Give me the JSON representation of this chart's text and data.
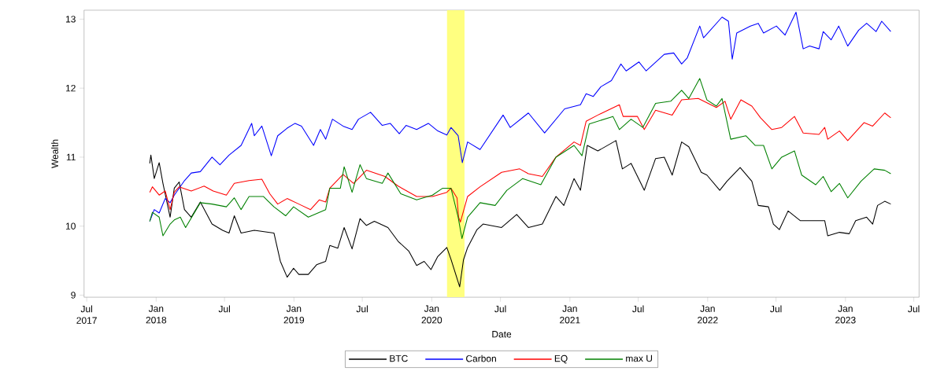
{
  "chart_data": {
    "type": "line",
    "xlabel": "Date",
    "ylabel": "Wealth",
    "xlim": [
      "2017-06-24",
      "2023-07-15"
    ],
    "ylim": [
      8.97,
      13.13
    ],
    "xticks": [
      {
        "value": "2017-07-01",
        "label": "Jul 2017"
      },
      {
        "value": "2018-01-01",
        "label": "Jan 2018"
      },
      {
        "value": "2018-07-01",
        "label": "Jul"
      },
      {
        "value": "2019-01-01",
        "label": "Jan 2019"
      },
      {
        "value": "2019-07-01",
        "label": "Jul"
      },
      {
        "value": "2020-01-01",
        "label": "Jan 2020"
      },
      {
        "value": "2020-07-01",
        "label": "Jul"
      },
      {
        "value": "2021-01-01",
        "label": "Jan 2021"
      },
      {
        "value": "2021-07-01",
        "label": "Jul"
      },
      {
        "value": "2022-01-01",
        "label": "Jan 2022"
      },
      {
        "value": "2022-07-01",
        "label": "Jul"
      },
      {
        "value": "2023-01-01",
        "label": "Jan 2023"
      },
      {
        "value": "2023-07-01",
        "label": "Jul"
      }
    ],
    "yticks": [
      9,
      10,
      11,
      12,
      13
    ],
    "grid": false,
    "legend": "bottom",
    "marker": "none",
    "line_style": "solid",
    "bands": [
      {
        "axis": "x",
        "from": "2020-02-10",
        "to": "2020-03-28",
        "color": "#ffff80"
      }
    ],
    "series": [
      {
        "name": "BTC",
        "color": "#000000",
        "x": [
          "2017-12-15",
          "2017-12-18",
          "2017-12-27",
          "2018-01-09",
          "2018-01-19",
          "2018-02-07",
          "2018-02-18",
          "2018-03-03",
          "2018-03-17",
          "2018-04-04",
          "2018-04-28",
          "2018-05-29",
          "2018-06-26",
          "2018-07-13",
          "2018-07-27",
          "2018-08-14",
          "2018-09-18",
          "2018-11-09",
          "2018-11-26",
          "2018-12-14",
          "2018-12-31",
          "2019-01-14",
          "2019-02-08",
          "2019-03-02",
          "2019-03-26",
          "2019-04-06",
          "2019-04-27",
          "2019-05-14",
          "2019-06-04",
          "2019-06-25",
          "2019-07-12",
          "2019-08-02",
          "2019-09-07",
          "2019-10-04",
          "2019-11-01",
          "2019-11-22",
          "2019-12-12",
          "2019-12-30",
          "2020-01-17",
          "2020-02-10",
          "2020-02-21",
          "2020-03-15",
          "2020-03-25",
          "2020-04-05",
          "2020-04-30",
          "2020-05-16",
          "2020-07-04",
          "2020-08-13",
          "2020-09-13",
          "2020-10-20",
          "2020-11-25",
          "2020-12-16",
          "2021-01-12",
          "2021-01-29",
          "2021-02-16",
          "2021-03-16",
          "2021-05-03",
          "2021-05-20",
          "2021-06-12",
          "2021-07-17",
          "2021-08-16",
          "2021-09-08",
          "2021-09-29",
          "2021-10-24",
          "2021-11-12",
          "2021-12-15",
          "2021-12-30",
          "2022-02-02",
          "2022-02-21",
          "2022-03-28",
          "2022-04-28",
          "2022-05-15",
          "2022-06-11",
          "2022-06-24",
          "2022-07-10",
          "2022-08-02",
          "2022-09-03",
          "2022-10-04",
          "2022-11-07",
          "2022-11-15",
          "2022-12-16",
          "2023-01-11",
          "2023-01-28",
          "2023-02-26",
          "2023-03-14",
          "2023-03-27",
          "2023-04-15",
          "2023-05-01"
        ],
        "values": [
          10.91,
          11.03,
          10.69,
          10.92,
          10.62,
          10.13,
          10.55,
          10.64,
          10.24,
          10.13,
          10.35,
          10.03,
          9.94,
          9.9,
          10.15,
          9.9,
          9.94,
          9.9,
          9.49,
          9.26,
          9.39,
          9.3,
          9.3,
          9.44,
          9.49,
          9.72,
          9.68,
          9.98,
          9.67,
          10.11,
          10.01,
          10.07,
          9.98,
          9.78,
          9.64,
          9.43,
          9.49,
          9.37,
          9.56,
          9.69,
          9.52,
          9.12,
          9.51,
          9.69,
          9.95,
          10.03,
          9.98,
          10.17,
          9.98,
          10.03,
          10.43,
          10.3,
          10.69,
          10.52,
          11.17,
          11.09,
          11.24,
          10.83,
          10.91,
          10.52,
          10.98,
          11.0,
          10.74,
          11.22,
          11.15,
          10.78,
          10.74,
          10.52,
          10.65,
          10.85,
          10.65,
          10.3,
          10.28,
          10.03,
          9.95,
          10.22,
          10.08,
          10.08,
          10.08,
          9.86,
          9.91,
          9.89,
          10.08,
          10.13,
          10.03,
          10.3,
          10.36,
          10.32
        ]
      },
      {
        "name": "Carbon",
        "color": "#0000ff",
        "x": [
          "2017-12-15",
          "2017-12-27",
          "2018-01-09",
          "2018-01-25",
          "2018-02-07",
          "2018-02-18",
          "2018-03-03",
          "2018-03-17",
          "2018-04-04",
          "2018-04-28",
          "2018-05-29",
          "2018-06-19",
          "2018-07-13",
          "2018-08-14",
          "2018-09-11",
          "2018-09-18",
          "2018-10-08",
          "2018-11-02",
          "2018-11-19",
          "2018-12-14",
          "2019-01-04",
          "2019-01-21",
          "2019-02-22",
          "2019-03-12",
          "2019-03-26",
          "2019-04-13",
          "2019-05-11",
          "2019-06-04",
          "2019-06-21",
          "2019-07-23",
          "2019-08-23",
          "2019-09-13",
          "2019-10-07",
          "2019-10-25",
          "2019-11-22",
          "2019-12-23",
          "2020-01-17",
          "2020-02-10",
          "2020-02-21",
          "2020-03-11",
          "2020-03-22",
          "2020-04-05",
          "2020-05-08",
          "2020-07-08",
          "2020-07-27",
          "2020-09-13",
          "2020-10-26",
          "2020-12-18",
          "2021-01-29",
          "2021-02-13",
          "2021-03-04",
          "2021-03-24",
          "2021-04-21",
          "2021-05-16",
          "2021-05-30",
          "2021-07-03",
          "2021-07-22",
          "2021-09-08",
          "2021-10-03",
          "2021-10-24",
          "2021-11-08",
          "2021-12-11",
          "2021-12-21",
          "2022-02-08",
          "2022-02-25",
          "2022-03-07",
          "2022-03-19",
          "2022-04-24",
          "2022-05-15",
          "2022-05-29",
          "2022-07-02",
          "2022-07-25",
          "2022-08-23",
          "2022-09-11",
          "2022-09-28",
          "2022-10-23",
          "2022-11-03",
          "2022-11-24",
          "2022-12-14",
          "2023-01-07",
          "2023-02-05",
          "2023-02-26",
          "2023-03-23",
          "2023-04-07",
          "2023-05-01"
        ],
        "values": [
          10.07,
          10.24,
          10.19,
          10.4,
          10.34,
          10.45,
          10.55,
          10.66,
          10.77,
          10.79,
          11.0,
          10.89,
          11.03,
          11.17,
          11.49,
          11.31,
          11.45,
          11.02,
          11.31,
          11.42,
          11.49,
          11.45,
          11.17,
          11.4,
          11.26,
          11.55,
          11.45,
          11.4,
          11.55,
          11.65,
          11.46,
          11.49,
          11.34,
          11.46,
          11.4,
          11.49,
          11.38,
          11.32,
          11.43,
          11.31,
          10.92,
          11.22,
          11.11,
          11.61,
          11.43,
          11.64,
          11.35,
          11.7,
          11.76,
          11.92,
          11.88,
          12.02,
          12.11,
          12.35,
          12.25,
          12.38,
          12.25,
          12.49,
          12.51,
          12.35,
          12.44,
          12.9,
          12.73,
          13.03,
          12.97,
          12.42,
          12.8,
          12.9,
          12.94,
          12.8,
          12.9,
          12.77,
          13.1,
          12.57,
          12.61,
          12.57,
          12.82,
          12.7,
          12.9,
          12.61,
          12.84,
          12.94,
          12.82,
          12.97,
          12.82
        ]
      },
      {
        "name": "EQ",
        "color": "#ff0000",
        "x": [
          "2017-12-15",
          "2017-12-22",
          "2018-01-09",
          "2018-01-25",
          "2018-02-07",
          "2018-02-18",
          "2018-03-03",
          "2018-04-04",
          "2018-05-08",
          "2018-06-01",
          "2018-07-06",
          "2018-07-27",
          "2018-09-04",
          "2018-10-08",
          "2018-10-29",
          "2018-11-19",
          "2018-12-14",
          "2019-01-14",
          "2019-02-14",
          "2019-03-09",
          "2019-03-26",
          "2019-04-06",
          "2019-05-11",
          "2019-06-08",
          "2019-07-12",
          "2019-08-30",
          "2019-10-04",
          "2019-11-22",
          "2020-01-03",
          "2020-02-10",
          "2020-02-21",
          "2020-03-08",
          "2020-03-12",
          "2020-03-17",
          "2020-04-05",
          "2020-05-08",
          "2020-07-04",
          "2020-08-21",
          "2020-09-13",
          "2020-10-20",
          "2020-11-25",
          "2021-01-12",
          "2021-01-29",
          "2021-02-13",
          "2021-03-16",
          "2021-05-12",
          "2021-05-22",
          "2021-06-29",
          "2021-07-17",
          "2021-08-16",
          "2021-09-29",
          "2021-10-24",
          "2021-12-07",
          "2022-01-24",
          "2022-02-16",
          "2022-03-03",
          "2022-03-30",
          "2022-04-28",
          "2022-05-21",
          "2022-06-20",
          "2022-07-16",
          "2022-08-19",
          "2022-09-11",
          "2022-10-23",
          "2022-11-07",
          "2022-11-15",
          "2022-12-16",
          "2023-01-07",
          "2023-02-19",
          "2023-03-14",
          "2023-04-15",
          "2023-05-01"
        ],
        "values": [
          10.49,
          10.57,
          10.45,
          10.51,
          10.24,
          10.49,
          10.57,
          10.51,
          10.58,
          10.51,
          10.45,
          10.62,
          10.66,
          10.68,
          10.47,
          10.32,
          10.4,
          10.32,
          10.24,
          10.38,
          10.35,
          10.55,
          10.75,
          10.62,
          10.81,
          10.72,
          10.58,
          10.43,
          10.43,
          10.49,
          10.55,
          10.41,
          10.13,
          10.06,
          10.43,
          10.57,
          10.78,
          10.83,
          10.76,
          10.72,
          11.0,
          11.22,
          11.17,
          11.52,
          11.61,
          11.76,
          11.59,
          11.59,
          11.4,
          11.68,
          11.61,
          11.83,
          11.85,
          11.72,
          11.81,
          11.55,
          11.83,
          11.74,
          11.57,
          11.4,
          11.43,
          11.59,
          11.35,
          11.33,
          11.43,
          11.26,
          11.38,
          11.24,
          11.5,
          11.45,
          11.64,
          11.57
        ]
      },
      {
        "name": "max U",
        "color": "#008000",
        "x": [
          "2017-12-15",
          "2017-12-22",
          "2018-01-09",
          "2018-01-19",
          "2018-02-07",
          "2018-02-18",
          "2018-03-06",
          "2018-03-20",
          "2018-04-28",
          "2018-05-29",
          "2018-07-06",
          "2018-07-27",
          "2018-08-14",
          "2018-09-04",
          "2018-10-12",
          "2018-11-09",
          "2018-12-10",
          "2018-12-31",
          "2019-02-08",
          "2019-03-26",
          "2019-04-06",
          "2019-05-04",
          "2019-05-14",
          "2019-06-04",
          "2019-06-25",
          "2019-07-12",
          "2019-08-23",
          "2019-09-07",
          "2019-10-11",
          "2019-11-22",
          "2020-01-03",
          "2020-01-30",
          "2020-02-21",
          "2020-03-11",
          "2020-03-21",
          "2020-04-05",
          "2020-05-08",
          "2020-06-17",
          "2020-07-18",
          "2020-08-29",
          "2020-10-16",
          "2020-11-25",
          "2021-01-12",
          "2021-02-02",
          "2021-02-21",
          "2021-04-25",
          "2021-05-12",
          "2021-06-12",
          "2021-07-13",
          "2021-08-16",
          "2021-09-25",
          "2021-10-24",
          "2021-11-12",
          "2021-12-11",
          "2021-12-30",
          "2022-01-24",
          "2022-02-08",
          "2022-03-03",
          "2022-04-12",
          "2022-05-07",
          "2022-05-29",
          "2022-06-20",
          "2022-07-16",
          "2022-08-19",
          "2022-09-07",
          "2022-10-14",
          "2022-11-03",
          "2022-11-24",
          "2022-12-16",
          "2023-01-07",
          "2023-02-11",
          "2023-03-18",
          "2023-04-15",
          "2023-05-01"
        ],
        "values": [
          10.07,
          10.2,
          10.13,
          9.86,
          10.03,
          10.09,
          10.13,
          9.98,
          10.34,
          10.32,
          10.28,
          10.41,
          10.24,
          10.43,
          10.43,
          10.28,
          10.15,
          10.28,
          10.13,
          10.24,
          10.55,
          10.55,
          10.86,
          10.49,
          10.89,
          10.69,
          10.62,
          10.77,
          10.47,
          10.38,
          10.45,
          10.55,
          10.55,
          10.13,
          9.82,
          10.13,
          10.34,
          10.3,
          10.52,
          10.69,
          10.6,
          11.0,
          11.17,
          11.02,
          11.48,
          11.59,
          11.4,
          11.55,
          11.43,
          11.78,
          11.81,
          11.97,
          11.85,
          12.14,
          11.83,
          11.74,
          11.85,
          11.26,
          11.31,
          11.17,
          11.17,
          10.83,
          11.0,
          11.09,
          10.74,
          10.6,
          10.72,
          10.5,
          10.62,
          10.41,
          10.65,
          10.83,
          10.81,
          10.76
        ]
      }
    ]
  }
}
